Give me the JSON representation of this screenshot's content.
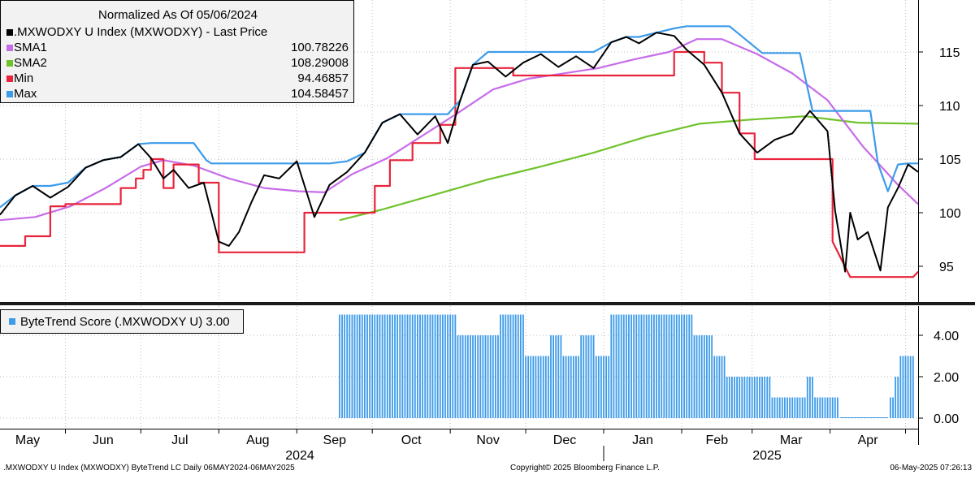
{
  "chart_data": [
    {
      "type": "line",
      "title": "",
      "legend": {
        "title": "Normalized As Of 05/06/2024",
        "placement": "top-left",
        "entries": [
          {
            "name": ".MXWODXY U Index (MXWODXY) - Last Price",
            "value": "",
            "color": "#000000"
          },
          {
            "name": "SMA1",
            "value": "100.78226",
            "color": "#c76ce8"
          },
          {
            "name": "SMA2",
            "value": "108.29008",
            "color": "#6fc22a"
          },
          {
            "name": "Min",
            "value": "94.46857",
            "color": "#e8243c"
          },
          {
            "name": "Max",
            "value": "104.58457",
            "color": "#3d9be9"
          }
        ]
      },
      "y_axis": {
        "position": "right",
        "ticks": [
          "95",
          "100",
          "105",
          "110",
          "115"
        ],
        "ylim": [
          92.5,
          119
        ]
      },
      "x_axis": {
        "months": [
          "May",
          "Jun",
          "Jul",
          "Aug",
          "Sep",
          "Oct",
          "Nov",
          "Dec",
          "Jan",
          "Feb",
          "Mar",
          "Apr"
        ],
        "years": [
          "2024",
          "2025"
        ],
        "range": [
          "2024-05-06",
          "2025-05-06"
        ]
      },
      "grid": true,
      "series": [
        {
          "name": ".MXWODXY U Index (MXWODXY) - Last Price",
          "color": "#000000",
          "x": [
            "2024-05-06",
            "2024-05-12",
            "2024-05-19",
            "2024-05-26",
            "2024-06-02",
            "2024-06-09",
            "2024-06-16",
            "2024-06-23",
            "2024-06-30",
            "2024-07-05",
            "2024-07-10",
            "2024-07-14",
            "2024-07-20",
            "2024-07-26",
            "2024-08-01",
            "2024-08-05",
            "2024-08-09",
            "2024-08-14",
            "2024-08-19",
            "2024-08-25",
            "2024-09-01",
            "2024-09-08",
            "2024-09-14",
            "2024-09-21",
            "2024-09-28",
            "2024-10-05",
            "2024-10-12",
            "2024-10-19",
            "2024-10-26",
            "2024-10-31",
            "2024-11-05",
            "2024-11-10",
            "2024-11-16",
            "2024-11-23",
            "2024-11-30",
            "2024-12-07",
            "2024-12-14",
            "2024-12-21",
            "2024-12-28",
            "2025-01-04",
            "2025-01-10",
            "2025-01-15",
            "2025-01-22",
            "2025-01-29",
            "2025-02-03",
            "2025-02-10",
            "2025-02-17",
            "2025-02-24",
            "2025-03-03",
            "2025-03-10",
            "2025-03-17",
            "2025-03-24",
            "2025-03-31",
            "2025-04-03",
            "2025-04-07",
            "2025-04-09",
            "2025-04-12",
            "2025-04-16",
            "2025-04-21",
            "2025-04-24",
            "2025-04-28",
            "2025-05-02",
            "2025-05-06"
          ],
          "values": [
            99.8,
            101.6,
            102.5,
            101.4,
            102.4,
            104.2,
            104.9,
            105.2,
            106.4,
            105.1,
            103.2,
            104.0,
            102.3,
            102.8,
            97.3,
            96.9,
            98.2,
            101.0,
            103.5,
            103.2,
            104.8,
            99.6,
            102.6,
            103.8,
            105.6,
            108.4,
            109.2,
            107.3,
            109.0,
            106.5,
            110.5,
            113.8,
            114.1,
            112.7,
            114.0,
            114.8,
            113.6,
            114.6,
            113.5,
            115.9,
            116.4,
            115.8,
            116.8,
            116.5,
            115.2,
            113.8,
            111.2,
            107.4,
            105.6,
            106.8,
            107.4,
            109.5,
            107.6,
            100.2,
            94.5,
            100.0,
            97.5,
            98.2,
            94.6,
            100.5,
            102.3,
            104.5,
            103.8
          ]
        },
        {
          "name": "SMA1",
          "color": "#c76ce8",
          "x": [
            "2024-05-06",
            "2024-05-20",
            "2024-06-03",
            "2024-06-17",
            "2024-07-01",
            "2024-07-10",
            "2024-07-22",
            "2024-08-05",
            "2024-08-19",
            "2024-09-02",
            "2024-09-12",
            "2024-09-23",
            "2024-10-07",
            "2024-10-21",
            "2024-11-04",
            "2024-11-18",
            "2024-12-02",
            "2024-12-16",
            "2024-12-30",
            "2025-01-13",
            "2025-01-27",
            "2025-02-07",
            "2025-02-17",
            "2025-03-03",
            "2025-03-17",
            "2025-03-31",
            "2025-04-14",
            "2025-04-28",
            "2025-05-06"
          ],
          "values": [
            99.3,
            99.6,
            100.6,
            102.3,
            104.3,
            104.9,
            104.4,
            103.2,
            102.3,
            102.0,
            101.9,
            103.6,
            105.1,
            107.2,
            109.3,
            111.5,
            112.5,
            113.0,
            113.5,
            114.3,
            115.0,
            116.2,
            116.2,
            114.8,
            113.0,
            110.5,
            106.2,
            102.6,
            100.8
          ]
        },
        {
          "name": "SMA2",
          "color": "#6fc22a",
          "x": [
            "2024-09-18",
            "2024-10-05",
            "2024-10-26",
            "2024-11-16",
            "2024-12-07",
            "2024-12-28",
            "2025-01-18",
            "2025-02-08",
            "2025-03-01",
            "2025-03-22",
            "2025-04-12",
            "2025-05-06"
          ],
          "values": [
            99.3,
            100.3,
            101.7,
            103.1,
            104.3,
            105.6,
            107.1,
            108.3,
            108.7,
            109.0,
            108.4,
            108.3
          ]
        },
        {
          "name": "Min",
          "color": "#e8243c",
          "x": [
            "2024-05-06",
            "2024-05-16",
            "2024-05-16",
            "2024-05-26",
            "2024-05-26",
            "2024-06-01",
            "2024-06-01",
            "2024-06-23",
            "2024-06-23",
            "2024-06-29",
            "2024-06-29",
            "2024-07-02",
            "2024-07-02",
            "2024-07-05",
            "2024-07-05",
            "2024-07-10",
            "2024-07-10",
            "2024-07-14",
            "2024-07-14",
            "2024-07-24",
            "2024-07-24",
            "2024-08-01",
            "2024-08-01",
            "2024-09-04",
            "2024-09-04",
            "2024-10-02",
            "2024-10-02",
            "2024-10-08",
            "2024-10-08",
            "2024-10-17",
            "2024-10-17",
            "2024-10-28",
            "2024-10-28",
            "2024-11-03",
            "2024-11-03",
            "2024-11-26",
            "2024-11-26",
            "2025-01-29",
            "2025-01-29",
            "2025-02-10",
            "2025-02-10",
            "2025-02-17",
            "2025-02-17",
            "2025-02-24",
            "2025-02-24",
            "2025-03-02",
            "2025-03-02",
            "2025-04-02",
            "2025-04-02",
            "2025-04-09",
            "2025-05-04",
            "2025-05-06"
          ],
          "values": [
            96.9,
            96.9,
            97.8,
            97.8,
            100.6,
            100.6,
            100.8,
            100.8,
            102.3,
            102.3,
            103.2,
            103.2,
            104.0,
            104.0,
            105.0,
            105.0,
            102.3,
            102.3,
            104.5,
            104.5,
            102.8,
            102.8,
            96.3,
            96.3,
            100.0,
            100.0,
            102.5,
            102.5,
            104.9,
            104.9,
            106.5,
            106.5,
            108.2,
            108.2,
            113.5,
            113.5,
            112.8,
            112.8,
            115.0,
            115.0,
            114.0,
            114.0,
            111.2,
            111.2,
            107.4,
            107.4,
            105.0,
            105.0,
            97.3,
            94.0,
            94.0,
            94.5
          ]
        },
        {
          "name": "Max",
          "color": "#3d9be9",
          "x": [
            "2024-05-06",
            "2024-05-12",
            "2024-05-19",
            "2024-05-26",
            "2024-06-02",
            "2024-06-09",
            "2024-06-16",
            "2024-06-23",
            "2024-06-30",
            "2024-07-05",
            "2024-07-22",
            "2024-07-27",
            "2024-07-29",
            "2024-08-05",
            "2024-09-01",
            "2024-09-08",
            "2024-09-14",
            "2024-09-21",
            "2024-09-28",
            "2024-10-05",
            "2024-10-12",
            "2024-10-31",
            "2024-11-05",
            "2024-11-10",
            "2024-11-16",
            "2024-12-21",
            "2024-12-28",
            "2025-01-04",
            "2025-01-10",
            "2025-01-15",
            "2025-01-22",
            "2025-01-29",
            "2025-02-03",
            "2025-02-20",
            "2025-03-05",
            "2025-03-20",
            "2025-03-25",
            "2025-04-17",
            "2025-04-20",
            "2025-04-24",
            "2025-04-28",
            "2025-05-02",
            "2025-05-06"
          ],
          "values": [
            100.5,
            101.6,
            102.5,
            102.5,
            102.8,
            104.2,
            104.9,
            105.2,
            106.4,
            106.5,
            106.5,
            104.9,
            104.6,
            104.6,
            104.6,
            104.6,
            104.6,
            104.8,
            105.6,
            108.4,
            109.2,
            109.2,
            110.5,
            113.8,
            115.0,
            115.0,
            115.0,
            115.9,
            116.4,
            116.4,
            116.8,
            117.2,
            117.4,
            117.4,
            114.9,
            114.9,
            109.5,
            109.5,
            104.6,
            102.0,
            104.5,
            104.6,
            104.6
          ]
        }
      ]
    },
    {
      "type": "bar",
      "title": "",
      "legend": {
        "placement": "top-left",
        "entries": [
          {
            "name": "ByteTrend Score (.MXWODXY U) 3.00",
            "color": "#3d9be9"
          }
        ]
      },
      "y_axis": {
        "position": "right",
        "ticks": [
          "0.00",
          "2.00",
          "4.00"
        ],
        "ylim": [
          0,
          5.6
        ]
      },
      "bar_color": "#3d9be9",
      "segments": [
        {
          "start": "2024-09-18",
          "end": "2024-11-03",
          "value": 5
        },
        {
          "start": "2024-11-04",
          "end": "2024-11-20",
          "value": 4
        },
        {
          "start": "2024-11-21",
          "end": "2024-11-30",
          "value": 5
        },
        {
          "start": "2024-12-01",
          "end": "2024-12-10",
          "value": 3
        },
        {
          "start": "2024-12-11",
          "end": "2024-12-15",
          "value": 4
        },
        {
          "start": "2024-12-16",
          "end": "2024-12-22",
          "value": 3
        },
        {
          "start": "2024-12-23",
          "end": "2024-12-28",
          "value": 4
        },
        {
          "start": "2024-12-29",
          "end": "2025-01-03",
          "value": 3
        },
        {
          "start": "2025-01-04",
          "end": "2025-02-05",
          "value": 5
        },
        {
          "start": "2025-02-06",
          "end": "2025-02-13",
          "value": 4
        },
        {
          "start": "2025-02-14",
          "end": "2025-02-18",
          "value": 3
        },
        {
          "start": "2025-02-19",
          "end": "2025-03-08",
          "value": 2
        },
        {
          "start": "2025-03-09",
          "end": "2025-03-22",
          "value": 1
        },
        {
          "start": "2025-03-23",
          "end": "2025-03-25",
          "value": 2
        },
        {
          "start": "2025-03-26",
          "end": "2025-04-04",
          "value": 1
        },
        {
          "start": "2025-04-05",
          "end": "2025-04-24",
          "value": 0
        },
        {
          "start": "2025-04-25",
          "end": "2025-04-26",
          "value": 1
        },
        {
          "start": "2025-04-27",
          "end": "2025-04-28",
          "value": 2
        },
        {
          "start": "2025-04-29",
          "end": "2025-05-04",
          "value": 3
        }
      ]
    }
  ],
  "footer": {
    "left": ".MXWODXY U Index (MXWODXY) ByteTrend LC  Daily 06MAY2024-06MAY2025",
    "center": "Copyright© 2025 Bloomberg Finance L.P.",
    "right": "06-May-2025 07:26:13"
  }
}
